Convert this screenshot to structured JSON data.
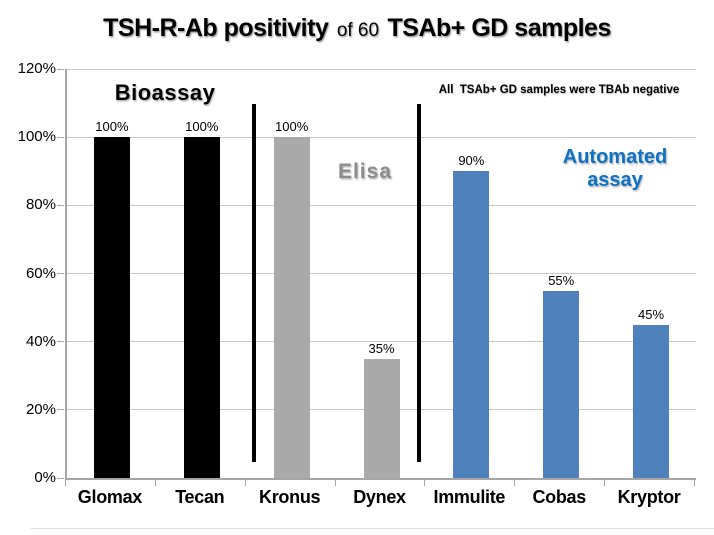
{
  "title": {
    "part1": "TSH-R-Ab positivity",
    "part2": "of 60",
    "part3": "TSAb+ GD samples"
  },
  "annotation": "All  TSAb+ GD samples were TBAb negative",
  "group_labels": {
    "bioassay": "Bioassay",
    "elisa": "Elisa",
    "automated_line1": "Automated",
    "automated_line2": "assay"
  },
  "colors": {
    "black_bar": "#000000",
    "gray_bar": "#aaaaaa",
    "blue_bar": "#4f81bd",
    "elisa_text": "#8c8c8c",
    "automated_text": "#0d72c4",
    "axis": "#a6a6a6",
    "gridline": "#c6c6c6"
  },
  "chart_data": {
    "type": "bar",
    "title": "TSH-R-Ab positivity of 60 TSAb+ GD samples",
    "categories": [
      "Glomax",
      "Tecan",
      "Kronus",
      "Dynex",
      "Immulite",
      "Cobas",
      "Kryptor"
    ],
    "values": [
      100,
      100,
      100,
      35,
      90,
      55,
      45
    ],
    "value_labels": [
      "100%",
      "100%",
      "100%",
      "35%",
      "90%",
      "55%",
      "45%"
    ],
    "bar_colors": [
      "#000000",
      "#000000",
      "#aaaaaa",
      "#aaaaaa",
      "#4f81bd",
      "#4f81bd",
      "#4f81bd"
    ],
    "groups": [
      {
        "name": "Bioassay",
        "categories": [
          "Glomax",
          "Tecan"
        ]
      },
      {
        "name": "Elisa",
        "categories": [
          "Kronus",
          "Dynex"
        ]
      },
      {
        "name": "Automated assay",
        "categories": [
          "Immulite",
          "Cobas",
          "Kryptor"
        ]
      }
    ],
    "xlabel": "",
    "ylabel": "",
    "ylim": [
      0,
      120
    ],
    "ytick_step": 20,
    "ytick_labels": [
      "0%",
      "20%",
      "40%",
      "60%",
      "80%",
      "100%",
      "120%"
    ],
    "grid": true,
    "legend": false,
    "separators_after_index": [
      1,
      3
    ],
    "annotation": "All TSAb+ GD samples were TBAb negative"
  }
}
